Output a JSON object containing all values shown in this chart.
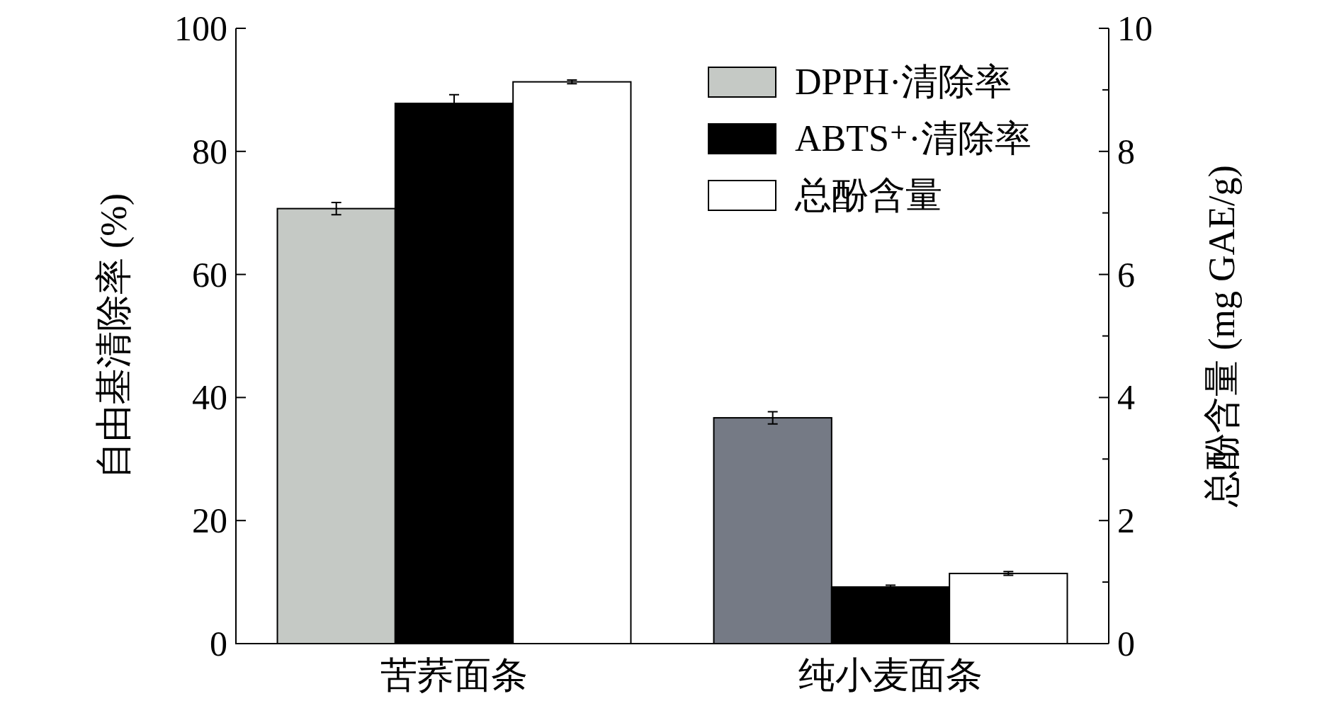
{
  "chart_data": {
    "type": "bar",
    "categories": [
      "苦荞面条",
      "纯小麦面条"
    ],
    "ylabel": "自由基清除率 (%)",
    "y2label": "总酚含量 (mg GAE/g)",
    "ylim": [
      0,
      100
    ],
    "yticks": [
      0,
      20,
      40,
      60,
      80,
      100
    ],
    "y2lim": [
      0,
      10
    ],
    "y2ticks": [
      0,
      {
        "value": 1,
        "label": null
      },
      2,
      {
        "value": 3,
        "label": null
      },
      4,
      {
        "value": 5,
        "label": null
      },
      6,
      {
        "value": 7,
        "label": null
      },
      8,
      {
        "value": 9,
        "label": null
      },
      10
    ],
    "legend": "top right",
    "grid": false,
    "series": [
      {
        "name": "DPPH·清除率",
        "color": "#c5c9c5",
        "colors": [
          "#c5c9c5",
          "#757a85"
        ],
        "values": [
          70.7,
          36.7
        ],
        "errors": [
          1.0,
          1.0
        ]
      },
      {
        "name": "ABTS⁺·清除率",
        "color": "#000000",
        "values": [
          87.8,
          9.2
        ],
        "errors": [
          1.4,
          0.3
        ]
      },
      {
        "name": "总酚含量",
        "color": "#ffffff",
        "axis": "y2",
        "values": [
          9.13,
          1.14
        ],
        "errors": [
          0.03,
          0.03
        ]
      }
    ]
  }
}
